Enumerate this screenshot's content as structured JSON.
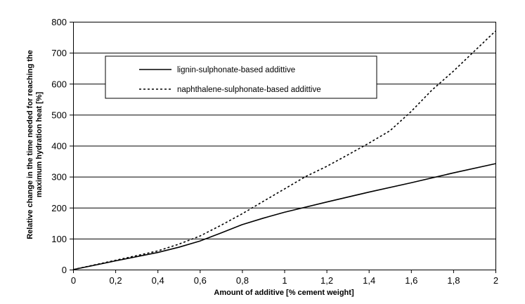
{
  "chart_data": {
    "type": "line",
    "xlabel": "Amount of additive [% cement weight]",
    "ylabel": "Relative change in the time needed for reaching the maximum hydration heat [%]",
    "ylabel_lines": [
      "Relative change in the time needed for reaching the",
      "maximum hydration heat [%]"
    ],
    "xlim": [
      0,
      2
    ],
    "ylim": [
      0,
      800
    ],
    "x_ticks": [
      0,
      0.2,
      0.4,
      0.6,
      0.8,
      1.0,
      1.2,
      1.4,
      1.6,
      1.8,
      2.0
    ],
    "x_tick_labels": [
      "0",
      "0,2",
      "0,4",
      "0,6",
      "0,8",
      "1",
      "1,2",
      "1,4",
      "1,6",
      "1,8",
      "2"
    ],
    "y_ticks": [
      0,
      100,
      200,
      300,
      400,
      500,
      600,
      700,
      800
    ],
    "y_tick_labels": [
      "0",
      "100",
      "200",
      "300",
      "400",
      "500",
      "600",
      "700",
      "800"
    ],
    "grid": "horizontal",
    "legend": "upper-left",
    "series": [
      {
        "name": "lignin-sulphonate-based addittive",
        "style": "solid",
        "color": "#000000",
        "x": [
          0,
          0.2,
          0.4,
          0.5,
          0.6,
          0.7,
          0.8,
          0.9,
          1.0,
          1.2,
          1.4,
          1.6,
          1.8,
          2.0
        ],
        "y": [
          0,
          28,
          55,
          72,
          92,
          118,
          145,
          166,
          185,
          218,
          250,
          280,
          312,
          342
        ]
      },
      {
        "name": "naphthalene-sulphonate-based addittive",
        "style": "dashed",
        "color": "#000000",
        "x": [
          0,
          0.2,
          0.4,
          0.5,
          0.6,
          0.7,
          0.8,
          0.9,
          1.0,
          1.1,
          1.2,
          1.3,
          1.4,
          1.5,
          1.6,
          1.7,
          1.8,
          1.9,
          2.0
        ],
        "y": [
          0,
          30,
          60,
          82,
          108,
          143,
          180,
          220,
          260,
          300,
          333,
          370,
          408,
          448,
          510,
          580,
          640,
          705,
          770
        ]
      }
    ]
  }
}
